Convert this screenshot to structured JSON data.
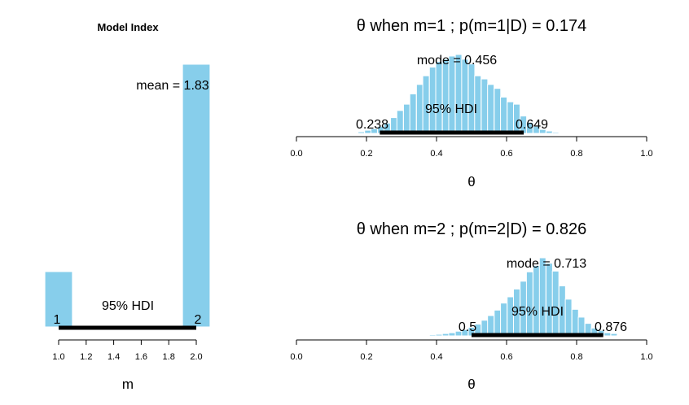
{
  "colors": {
    "bar": "#87CEEB",
    "hdi": "#000000"
  },
  "chart_data": [
    {
      "id": "model",
      "type": "bar",
      "title": "Model Index",
      "xlabel": "m",
      "xlim": [
        0.9,
        2.1
      ],
      "x_ticks": [
        "1.0",
        "1.2",
        "1.4",
        "1.6",
        "1.8",
        "2.0"
      ],
      "bars": [
        {
          "x": 1.0,
          "value": 0.174
        },
        {
          "x": 2.0,
          "value": 0.826
        }
      ],
      "bar_width": 0.2,
      "mean_label": "mean = 1.83",
      "hdi_label": "95% HDI",
      "hdi": [
        1,
        2
      ],
      "hdi_low_label": "1",
      "hdi_high_label": "2"
    },
    {
      "id": "m1",
      "type": "bar",
      "title": "θ when m=1 ; p(m=1|D) = 0.174",
      "xlabel": "θ",
      "xlim": [
        0,
        1
      ],
      "x_ticks": [
        "0.0",
        "0.2",
        "0.4",
        "0.6",
        "0.8",
        "1.0"
      ],
      "bin_width": 0.0185,
      "bins": [
        {
          "x": 0.167,
          "value": 0.01
        },
        {
          "x": 0.185,
          "value": 0.02
        },
        {
          "x": 0.204,
          "value": 0.04
        },
        {
          "x": 0.222,
          "value": 0.06
        },
        {
          "x": 0.241,
          "value": 0.09
        },
        {
          "x": 0.259,
          "value": 0.13
        },
        {
          "x": 0.278,
          "value": 0.2
        },
        {
          "x": 0.296,
          "value": 0.29
        },
        {
          "x": 0.315,
          "value": 0.37
        },
        {
          "x": 0.333,
          "value": 0.5
        },
        {
          "x": 0.352,
          "value": 0.62
        },
        {
          "x": 0.37,
          "value": 0.73
        },
        {
          "x": 0.389,
          "value": 0.84
        },
        {
          "x": 0.407,
          "value": 0.91
        },
        {
          "x": 0.426,
          "value": 0.94
        },
        {
          "x": 0.444,
          "value": 0.98
        },
        {
          "x": 0.463,
          "value": 1.0
        },
        {
          "x": 0.481,
          "value": 0.94
        },
        {
          "x": 0.5,
          "value": 0.88
        },
        {
          "x": 0.518,
          "value": 0.73
        },
        {
          "x": 0.537,
          "value": 0.69
        },
        {
          "x": 0.555,
          "value": 0.62
        },
        {
          "x": 0.574,
          "value": 0.57
        },
        {
          "x": 0.592,
          "value": 0.46
        },
        {
          "x": 0.611,
          "value": 0.4
        },
        {
          "x": 0.629,
          "value": 0.37
        },
        {
          "x": 0.648,
          "value": 0.22
        },
        {
          "x": 0.666,
          "value": 0.14
        },
        {
          "x": 0.685,
          "value": 0.09
        },
        {
          "x": 0.703,
          "value": 0.05
        },
        {
          "x": 0.722,
          "value": 0.03
        },
        {
          "x": 0.74,
          "value": 0.015
        },
        {
          "x": 0.759,
          "value": 0.008
        }
      ],
      "mode_label": "mode = 0.456",
      "hdi_label": "95% HDI",
      "hdi": [
        0.238,
        0.649
      ],
      "hdi_low_label": "0.238",
      "hdi_high_label": "0.649"
    },
    {
      "id": "m2",
      "type": "bar",
      "title": "θ when m=2 ; p(m=2|D) = 0.826",
      "xlabel": "θ",
      "xlim": [
        0,
        1
      ],
      "x_ticks": [
        "0.0",
        "0.2",
        "0.4",
        "0.6",
        "0.8",
        "1.0"
      ],
      "bin_width": 0.0185,
      "bins": [
        {
          "x": 0.352,
          "value": 0.005
        },
        {
          "x": 0.37,
          "value": 0.01
        },
        {
          "x": 0.389,
          "value": 0.015
        },
        {
          "x": 0.407,
          "value": 0.02
        },
        {
          "x": 0.426,
          "value": 0.03
        },
        {
          "x": 0.444,
          "value": 0.04
        },
        {
          "x": 0.463,
          "value": 0.06
        },
        {
          "x": 0.481,
          "value": 0.08
        },
        {
          "x": 0.5,
          "value": 0.11
        },
        {
          "x": 0.518,
          "value": 0.15
        },
        {
          "x": 0.537,
          "value": 0.2
        },
        {
          "x": 0.555,
          "value": 0.26
        },
        {
          "x": 0.574,
          "value": 0.33
        },
        {
          "x": 0.592,
          "value": 0.42
        },
        {
          "x": 0.611,
          "value": 0.5
        },
        {
          "x": 0.629,
          "value": 0.6
        },
        {
          "x": 0.648,
          "value": 0.7
        },
        {
          "x": 0.666,
          "value": 0.82
        },
        {
          "x": 0.685,
          "value": 0.9
        },
        {
          "x": 0.703,
          "value": 1.0
        },
        {
          "x": 0.722,
          "value": 0.93
        },
        {
          "x": 0.74,
          "value": 0.83
        },
        {
          "x": 0.759,
          "value": 0.64
        },
        {
          "x": 0.777,
          "value": 0.47
        },
        {
          "x": 0.796,
          "value": 0.34
        },
        {
          "x": 0.814,
          "value": 0.24
        },
        {
          "x": 0.833,
          "value": 0.16
        },
        {
          "x": 0.851,
          "value": 0.1
        },
        {
          "x": 0.87,
          "value": 0.07
        },
        {
          "x": 0.888,
          "value": 0.04
        },
        {
          "x": 0.907,
          "value": 0.03
        },
        {
          "x": 0.925,
          "value": 0.01
        }
      ],
      "mode_label": "mode = 0.713",
      "hdi_label": "95% HDI",
      "hdi": [
        0.5,
        0.876
      ],
      "hdi_low_label": "0.5",
      "hdi_high_label": "0.876"
    }
  ]
}
